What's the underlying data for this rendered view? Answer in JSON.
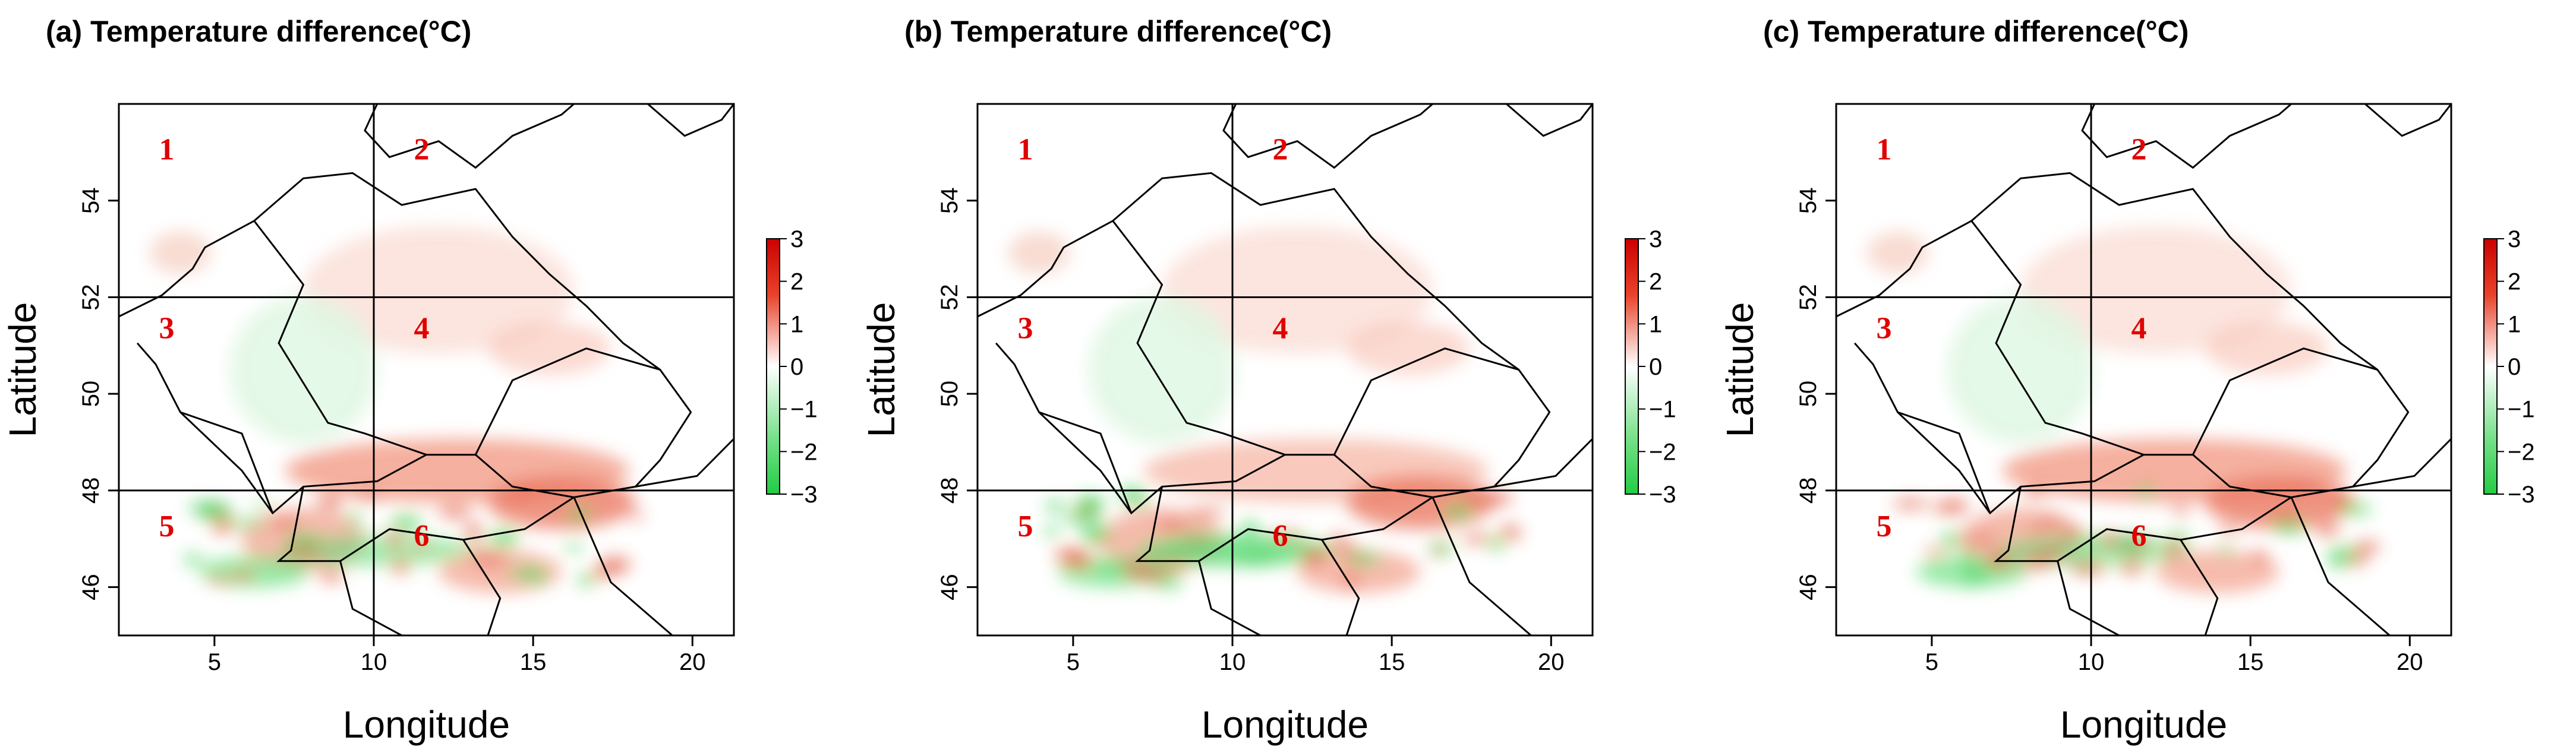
{
  "figure": {
    "colors": {
      "positive": "#e8432a",
      "negative": "#22cc44",
      "zero": "#ffffff",
      "region_label": "#e00000",
      "border": "#000000"
    },
    "colorbar": {
      "ticks": [
        "3",
        "2",
        "1",
        "0",
        "−1",
        "−2",
        "−3"
      ]
    }
  },
  "chart_data": [
    {
      "type": "heatmap",
      "panel": "a",
      "title": "(a) Temperature difference(°C)",
      "xlabel": "Longitude",
      "ylabel": "Latitude",
      "xlim": [
        2,
        21.3
      ],
      "ylim": [
        45,
        56
      ],
      "x_ticks": [
        "5",
        "10",
        "15",
        "20"
      ],
      "y_ticks": [
        "46",
        "48",
        "50",
        "52",
        "54"
      ],
      "grid_lines": {
        "longitude": [
          10
        ],
        "latitude": [
          48,
          52
        ]
      },
      "color_scale": {
        "min": -3,
        "max": 3,
        "low": "green",
        "mid": "white",
        "high": "red"
      },
      "regions": [
        {
          "label": "1",
          "lon": 3.5,
          "lat": 55.0
        },
        {
          "label": "2",
          "lon": 11.5,
          "lat": 55.0
        },
        {
          "label": "3",
          "lon": 3.5,
          "lat": 51.3
        },
        {
          "label": "4",
          "lon": 11.5,
          "lat": 51.3
        },
        {
          "label": "5",
          "lon": 3.5,
          "lat": 47.2
        },
        {
          "label": "6",
          "lon": 11.5,
          "lat": 47.0
        }
      ]
    },
    {
      "type": "heatmap",
      "panel": "b",
      "title": "(b) Temperature difference(°C)",
      "xlabel": "Longitude",
      "ylabel": "Latitude",
      "xlim": [
        2,
        21.3
      ],
      "ylim": [
        45,
        56
      ],
      "x_ticks": [
        "5",
        "10",
        "15",
        "20"
      ],
      "y_ticks": [
        "46",
        "48",
        "50",
        "52",
        "54"
      ],
      "grid_lines": {
        "longitude": [
          10
        ],
        "latitude": [
          48,
          52
        ]
      },
      "color_scale": {
        "min": -3,
        "max": 3,
        "low": "green",
        "mid": "white",
        "high": "red"
      },
      "regions": [
        {
          "label": "1",
          "lon": 3.5,
          "lat": 55.0
        },
        {
          "label": "2",
          "lon": 11.5,
          "lat": 55.0
        },
        {
          "label": "3",
          "lon": 3.5,
          "lat": 51.3
        },
        {
          "label": "4",
          "lon": 11.5,
          "lat": 51.3
        },
        {
          "label": "5",
          "lon": 3.5,
          "lat": 47.2
        },
        {
          "label": "6",
          "lon": 11.5,
          "lat": 47.0
        }
      ]
    },
    {
      "type": "heatmap",
      "panel": "c",
      "title": "(c) Temperature difference(°C)",
      "xlabel": "Longitude",
      "ylabel": "Latitude",
      "xlim": [
        2,
        21.3
      ],
      "ylim": [
        45,
        56
      ],
      "x_ticks": [
        "5",
        "10",
        "15",
        "20"
      ],
      "y_ticks": [
        "46",
        "48",
        "50",
        "52",
        "54"
      ],
      "grid_lines": {
        "longitude": [
          10
        ],
        "latitude": [
          48,
          52
        ]
      },
      "color_scale": {
        "min": -3,
        "max": 3,
        "low": "green",
        "mid": "white",
        "high": "red"
      },
      "regions": [
        {
          "label": "1",
          "lon": 3.5,
          "lat": 55.0
        },
        {
          "label": "2",
          "lon": 11.5,
          "lat": 55.0
        },
        {
          "label": "3",
          "lon": 3.5,
          "lat": 51.3
        },
        {
          "label": "4",
          "lon": 11.5,
          "lat": 51.3
        },
        {
          "label": "5",
          "lon": 3.5,
          "lat": 47.2
        },
        {
          "label": "6",
          "lon": 11.5,
          "lat": 47.0
        }
      ]
    }
  ]
}
